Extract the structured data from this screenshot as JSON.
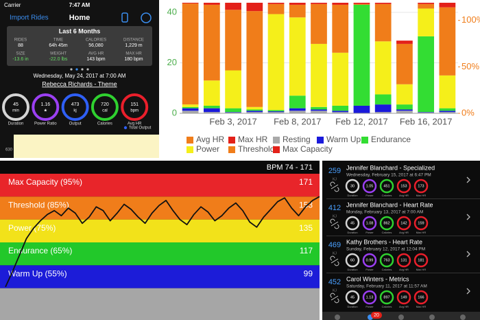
{
  "phone": {
    "status": {
      "carrier": "Carrier",
      "time": "7:47 AM"
    },
    "nav": {
      "left": "Import Rides",
      "title": "Home"
    },
    "summary": {
      "title": "Last 6 Months",
      "stats": [
        {
          "label": "RIDES",
          "value": "88"
        },
        {
          "label": "TIME",
          "value": "64h 45m"
        },
        {
          "label": "CALORIES",
          "value": "56,080"
        },
        {
          "label": "DISTANCE",
          "value": "1,229 m"
        },
        {
          "label": "SIZE",
          "value": "-13.6 in",
          "color": "#66dd66"
        },
        {
          "label": "WEIGHT",
          "value": "-22.0 lbs",
          "color": "#66dd66"
        },
        {
          "label": "AVG HR",
          "value": "143 bpm"
        },
        {
          "label": "MAX HR",
          "value": "180 bpm"
        }
      ]
    },
    "date": "Wednesday, May 24, 2017 at 7:00 AM",
    "ride": "Rebecca Richards - Theme",
    "rings": [
      {
        "value": "45",
        "unit": "min",
        "label": "Duration",
        "color": "#d4d4d4"
      },
      {
        "value": "1.16",
        "unit": "★",
        "label": "Power Ratio",
        "color": "#9b3ff2"
      },
      {
        "value": "473",
        "unit": "kj",
        "label": "Output",
        "color": "#2f5ff5"
      },
      {
        "value": "720",
        "unit": "cal",
        "label": "Calories",
        "color": "#2fd12f"
      },
      {
        "value": "151",
        "unit": "bpm",
        "label": "Avg HR",
        "color": "#ea1f2b"
      }
    ],
    "legend": "Total Output",
    "axis_label": "630"
  },
  "chart_data": [
    {
      "type": "bar",
      "stacked": true,
      "grid": true,
      "categories": [
        null,
        null,
        "Feb 3, 2017",
        null,
        null,
        "Feb 8, 2017",
        null,
        null,
        "Feb 12, 2017",
        null,
        null,
        "Feb 16, 2017",
        null
      ],
      "ylim": [
        0,
        43.8
      ],
      "yticks": [
        0,
        20,
        40
      ],
      "y2lim": [
        0,
        119
      ],
      "y2ticks": [
        {
          "value": 0,
          "label": "0%"
        },
        {
          "value": 50,
          "label": "50%"
        },
        {
          "value": 100,
          "label": "100%"
        }
      ],
      "series": [
        {
          "name": "Avg HR",
          "color": "#f07d1a"
        },
        {
          "name": "Max HR",
          "color": "#e32119"
        },
        {
          "name": "Resting",
          "color": "#a9a9a9",
          "values": [
            1,
            0.5,
            0.3,
            0.5,
            0.5,
            1,
            1,
            0.5,
            0,
            0.5,
            1,
            0.3,
            0.5
          ]
        },
        {
          "name": "Warm Up",
          "color": "#1a1adb",
          "values": [
            1,
            1.5,
            0.2,
            0.5,
            0.3,
            1,
            0.5,
            0.5,
            3,
            3,
            0.5,
            0.2,
            0.5
          ]
        },
        {
          "name": "Endurance",
          "color": "#33dd33",
          "values": [
            0.5,
            1,
            1.5,
            0.5,
            0.5,
            5,
            1,
            2,
            40,
            4,
            2,
            30,
            1
          ]
        },
        {
          "name": "Power",
          "color": "#f5ef1a",
          "values": [
            1,
            10,
            15,
            1,
            38,
            31,
            25,
            21,
            0,
            21,
            8,
            11,
            13
          ]
        },
        {
          "name": "Threshold",
          "color": "#f07d1a",
          "values": [
            40,
            30,
            24,
            38,
            4,
            5,
            15.8,
            19,
            0.3,
            14.8,
            16,
            1.8,
            27
          ]
        },
        {
          "name": "Max Capacity",
          "color": "#e32119",
          "values": [
            0.3,
            0.8,
            2.8,
            3.3,
            0.5,
            0.8,
            0.5,
            0.8,
            0.5,
            0.5,
            1.3,
            0.5,
            1.8
          ]
        }
      ]
    },
    {
      "type": "line",
      "title": "BPM 74 - 171",
      "ylim": [
        74,
        189
      ],
      "zones": [
        {
          "name": "Max Capacity (95%)",
          "value": 171,
          "color": "#e8252a"
        },
        {
          "name": "Threshold (85%)",
          "value": 153,
          "color": "#f07d1a"
        },
        {
          "name": "Power (75%)",
          "value": 135,
          "color": "#f2e21a"
        },
        {
          "name": "Endurance (65%)",
          "value": 117,
          "color": "#22c82a"
        },
        {
          "name": "Warm Up (55%)",
          "value": 99,
          "color": "#1c1cd8"
        }
      ],
      "floor_color": "#a6a6a6",
      "series": [
        {
          "color": "#111111",
          "values": [
            100,
            112,
            125,
            138,
            146,
            152,
            157,
            160,
            156,
            162,
            158,
            150,
            155,
            163,
            160,
            152,
            158,
            165,
            161,
            155,
            150,
            158,
            164,
            168,
            160,
            153,
            149,
            157,
            163,
            159,
            152,
            156,
            162,
            166,
            160,
            151,
            147,
            155,
            161,
            167,
            170,
            162,
            156,
            163,
            168,
            171
          ]
        }
      ]
    }
  ],
  "workouts": {
    "unit": "KJ",
    "ring_labels": [
      "Duration",
      "Power",
      "Calories",
      "Avg HR",
      "Max HR"
    ],
    "ring_colors": [
      "#d4d4d4",
      "#9b3ff2",
      "#2fd12f",
      "#ea1f2b",
      "#ea1f2b"
    ],
    "items": [
      {
        "kj": "259",
        "title": "Jennifer Blanchard - Specialized",
        "date": "Wednesday, February 15, 2017 at 6:47 PM",
        "rings": [
          "30",
          "1.05",
          "451",
          "153",
          "173"
        ]
      },
      {
        "kj": "412",
        "title": "Jennifer Blanchard - Heart Rate",
        "date": "Monday, February 13, 2017 at 7:00 AM",
        "rings": [
          "45",
          "1.08",
          "862",
          "142",
          "159"
        ]
      },
      {
        "kj": "469",
        "title": "Kathy Brothers - Heart Rate",
        "date": "Sunday, February 12, 2017 at 12:04 PM",
        "rings": [
          "60",
          "0.99",
          "763",
          "131",
          "181"
        ]
      },
      {
        "kj": "452",
        "title": "Carol Winters - Metrics",
        "date": "Saturday, February 11, 2017 at 11:57 AM",
        "rings": [
          "45",
          "1.13",
          "897",
          "149",
          "166"
        ]
      }
    ],
    "badge": "20"
  }
}
